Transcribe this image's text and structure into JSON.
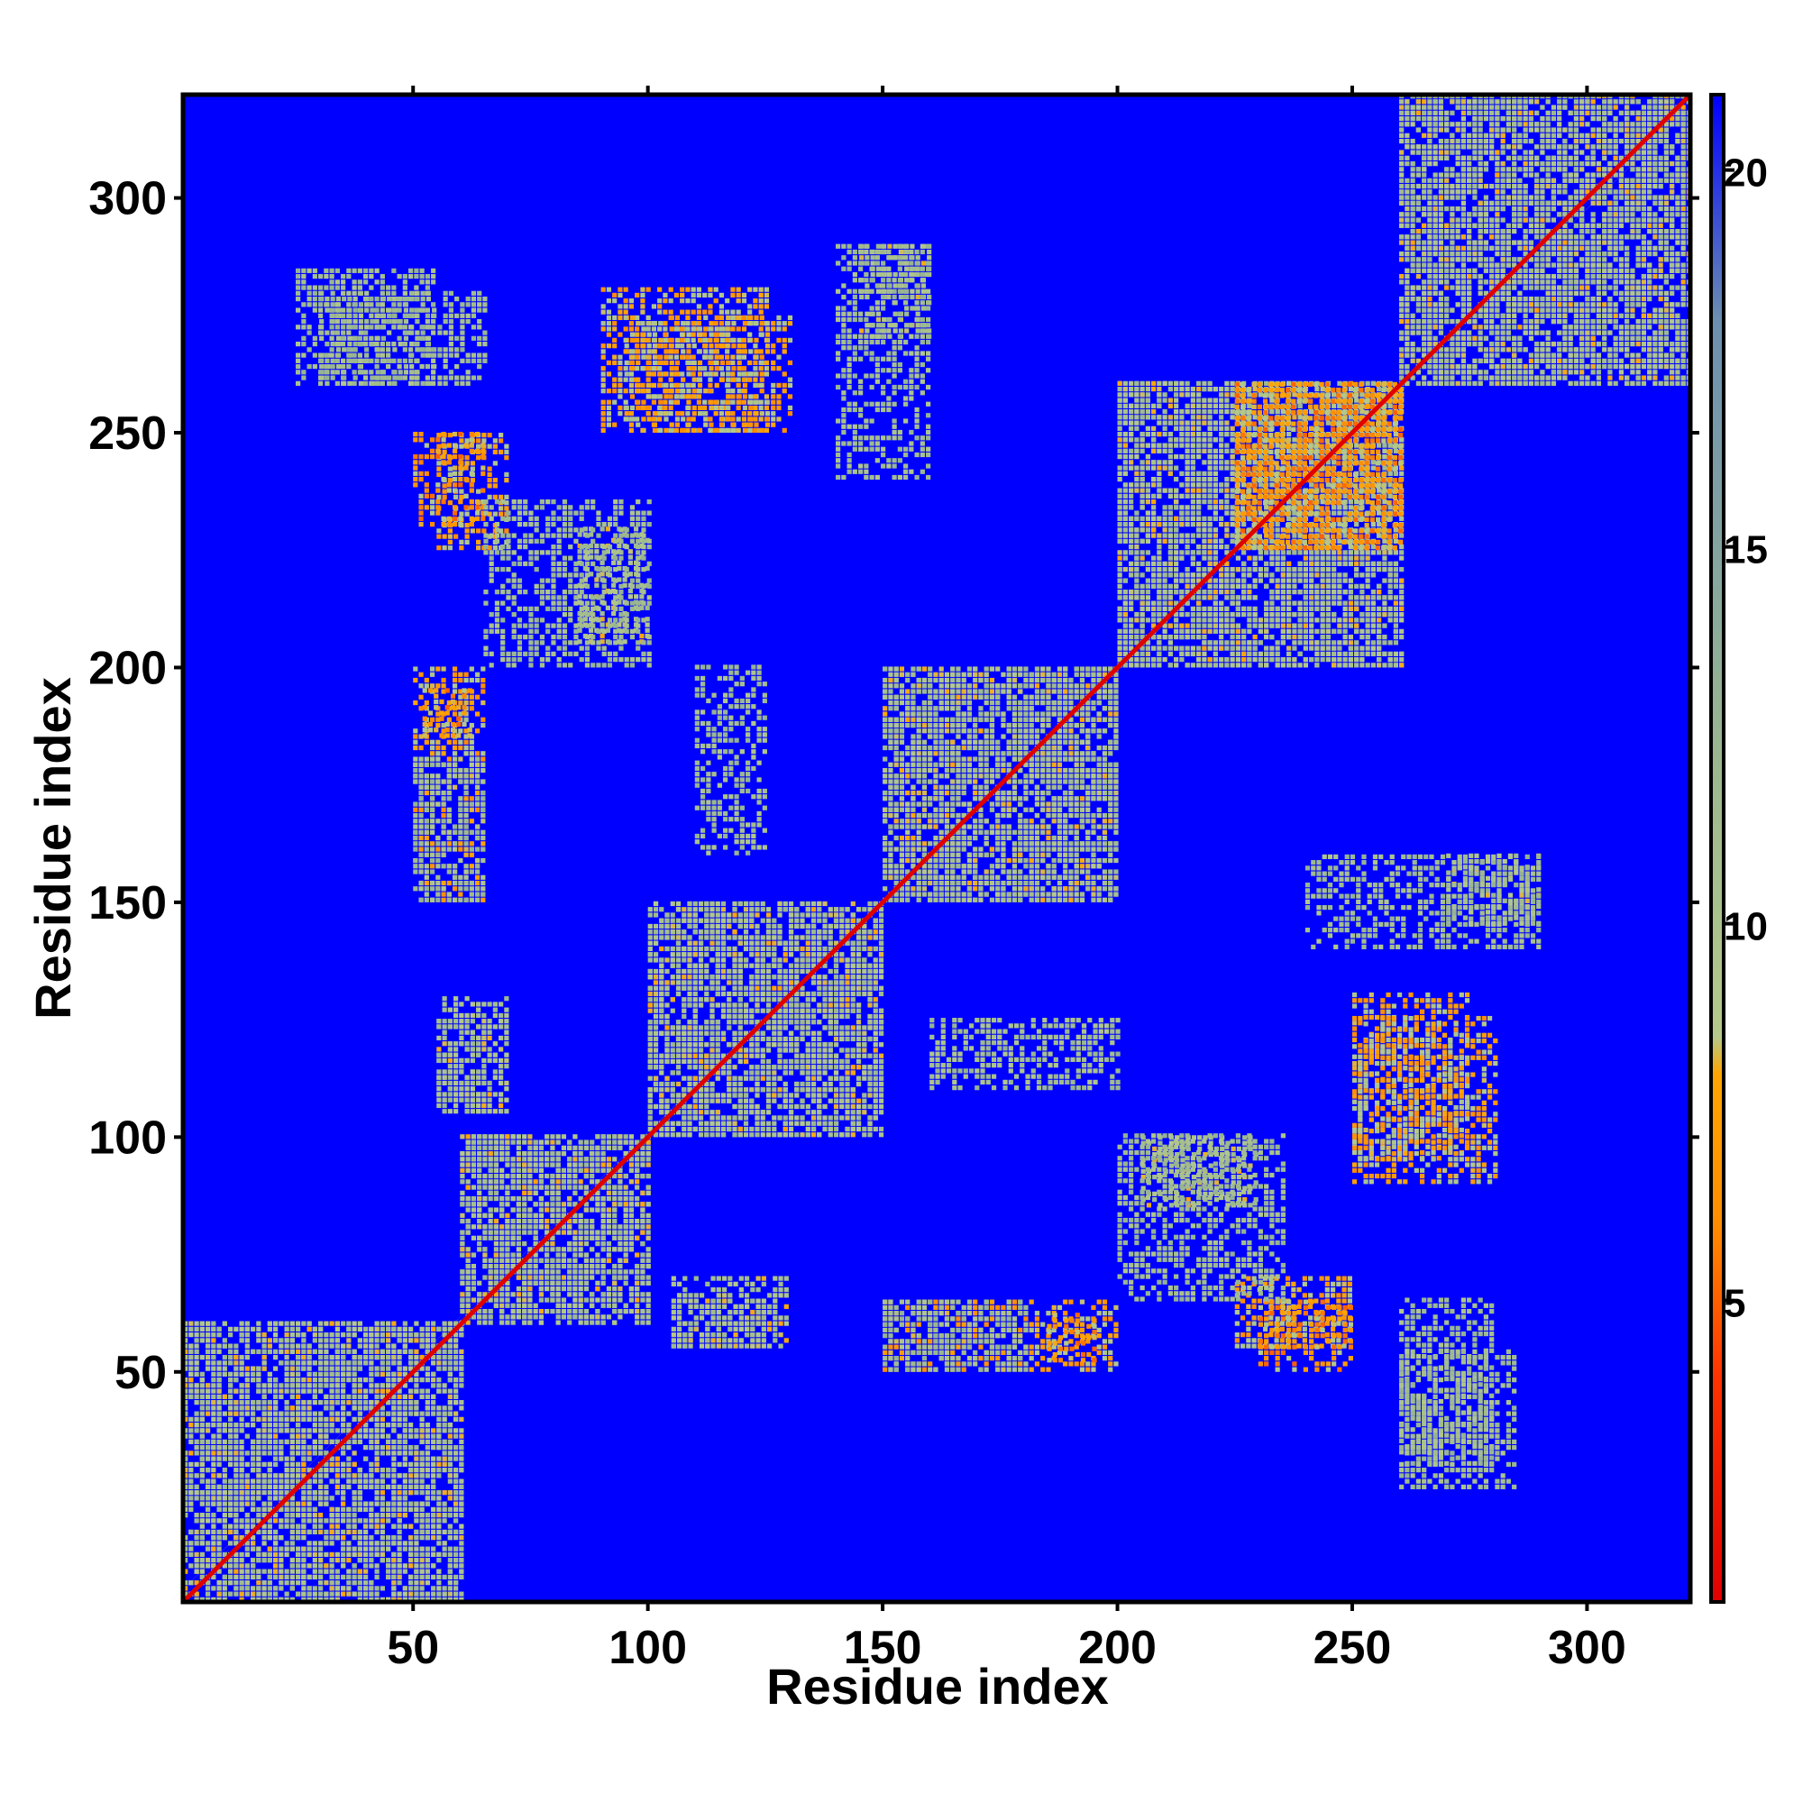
{
  "chart_data": {
    "type": "heatmap",
    "title": "",
    "xlabel": "Residue index",
    "ylabel": "Residue index",
    "xlim": [
      1,
      322
    ],
    "ylim": [
      1,
      322
    ],
    "x_ticks": [
      50,
      100,
      150,
      200,
      250,
      300
    ],
    "y_ticks": [
      50,
      100,
      150,
      200,
      250,
      300
    ],
    "x_tick_labels": [
      "50",
      "100",
      "150",
      "200",
      "250",
      "300"
    ],
    "y_tick_labels": [
      "50",
      "100",
      "150",
      "200",
      "250",
      "300"
    ],
    "grid": false,
    "colorbar": {
      "range": [
        1,
        21
      ],
      "ticks": [
        5,
        10,
        15,
        20
      ],
      "tick_labels": [
        "5",
        "10",
        "15",
        "20"
      ],
      "stops": [
        {
          "value": 1,
          "color": "#e00000"
        },
        {
          "value": 4,
          "color": "#ff3300"
        },
        {
          "value": 6,
          "color": "#ff8c00"
        },
        {
          "value": 8,
          "color": "#ffa500"
        },
        {
          "value": 8.5,
          "color": "#b5c98a"
        },
        {
          "value": 12,
          "color": "#9cb88f"
        },
        {
          "value": 18,
          "color": "#6c8fb0"
        },
        {
          "value": 21,
          "color": "#0000ff"
        }
      ]
    },
    "background_color": "#0000ff",
    "value_meaning": "pairwise residue distance; low values along diagonal, high (blue) elsewhere",
    "diagonal": {
      "from": 1,
      "to": 322,
      "value": 2
    },
    "contact_regions": [
      {
        "x": [
          1,
          60
        ],
        "y": [
          1,
          60
        ],
        "value": 9
      },
      {
        "x": [
          60,
          100
        ],
        "y": [
          60,
          100
        ],
        "value": 9
      },
      {
        "x": [
          100,
          150
        ],
        "y": [
          100,
          150
        ],
        "value": 9
      },
      {
        "x": [
          150,
          200
        ],
        "y": [
          150,
          200
        ],
        "value": 9
      },
      {
        "x": [
          200,
          260
        ],
        "y": [
          200,
          260
        ],
        "value": 9
      },
      {
        "x": [
          260,
          322
        ],
        "y": [
          260,
          322
        ],
        "value": 9
      },
      {
        "x": [
          50,
          65
        ],
        "y": [
          150,
          200
        ],
        "value": 7
      },
      {
        "x": [
          55,
          70
        ],
        "y": [
          225,
          250
        ],
        "value": 7
      },
      {
        "x": [
          30,
          65
        ],
        "y": [
          260,
          280
        ],
        "value": 10
      },
      {
        "x": [
          95,
          130
        ],
        "y": [
          250,
          275
        ],
        "value": 7
      },
      {
        "x": [
          85,
          100
        ],
        "y": [
          205,
          230
        ],
        "value": 9
      },
      {
        "x": [
          145,
          160
        ],
        "y": [
          270,
          290
        ],
        "value": 9
      },
      {
        "x": [
          225,
          260
        ],
        "y": [
          225,
          260
        ],
        "value": 6
      },
      {
        "x": [
          240,
          290
        ],
        "y": [
          140,
          160
        ],
        "value": 10
      },
      {
        "x": [
          250,
          280
        ],
        "y": [
          90,
          125
        ],
        "value": 7
      },
      {
        "x": [
          230,
          250
        ],
        "y": [
          50,
          65
        ],
        "value": 6
      },
      {
        "x": [
          185,
          195
        ],
        "y": [
          52,
          62
        ],
        "value": 6
      },
      {
        "x": [
          150,
          180
        ],
        "y": [
          50,
          65
        ],
        "value": 10
      },
      {
        "x": [
          260,
          285
        ],
        "y": [
          25,
          55
        ],
        "value": 10
      },
      {
        "x": [
          55,
          70
        ],
        "y": [
          105,
          130
        ],
        "value": 9
      },
      {
        "x": [
          105,
          125
        ],
        "y": [
          55,
          65
        ],
        "value": 9
      },
      {
        "x": [
          160,
          200
        ],
        "y": [
          110,
          125
        ],
        "value": 10
      },
      {
        "x": [
          200,
          235
        ],
        "y": [
          65,
          100
        ],
        "value": 10
      }
    ]
  }
}
